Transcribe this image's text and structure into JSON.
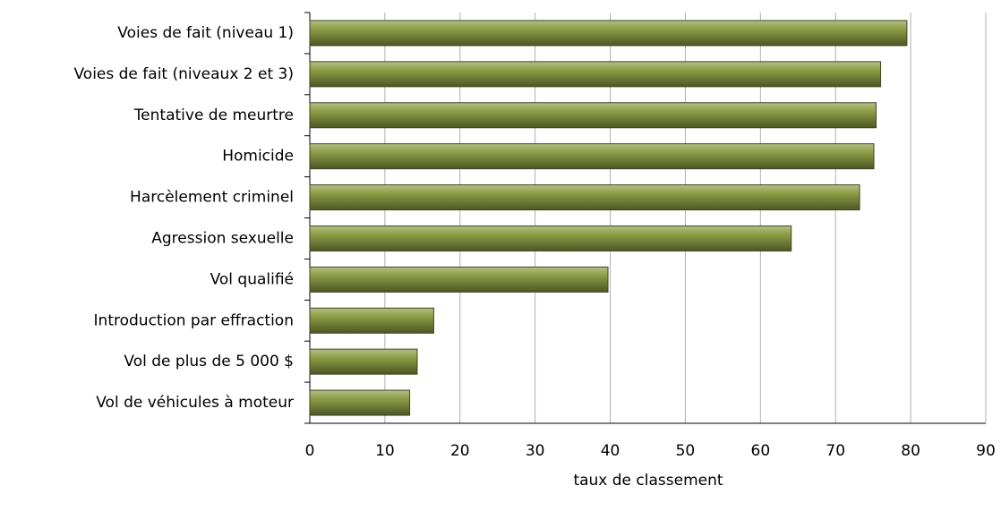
{
  "chart_data": {
    "type": "barh",
    "x_label": "taux de classement",
    "categories": [
      "Voies de fait (niveau 1)",
      "Voies de fait (niveaux 2 et 3)",
      "Tentative de meurtre",
      "Homicide",
      "Harcèlement criminel",
      "Agression sexuelle",
      "Vol qualifié",
      "Introduction par effraction",
      "Vol de plus de 5 000 $",
      "Vol de véhicules à moteur"
    ],
    "values": [
      79.5,
      76.0,
      75.4,
      75.1,
      73.2,
      64.1,
      39.7,
      16.5,
      14.3,
      13.3
    ],
    "color": "#8c9c44",
    "xlim": [
      0,
      90
    ],
    "xticks": [
      0,
      10,
      20,
      30,
      40,
      50,
      60,
      70,
      80,
      90
    ],
    "grid": true
  }
}
